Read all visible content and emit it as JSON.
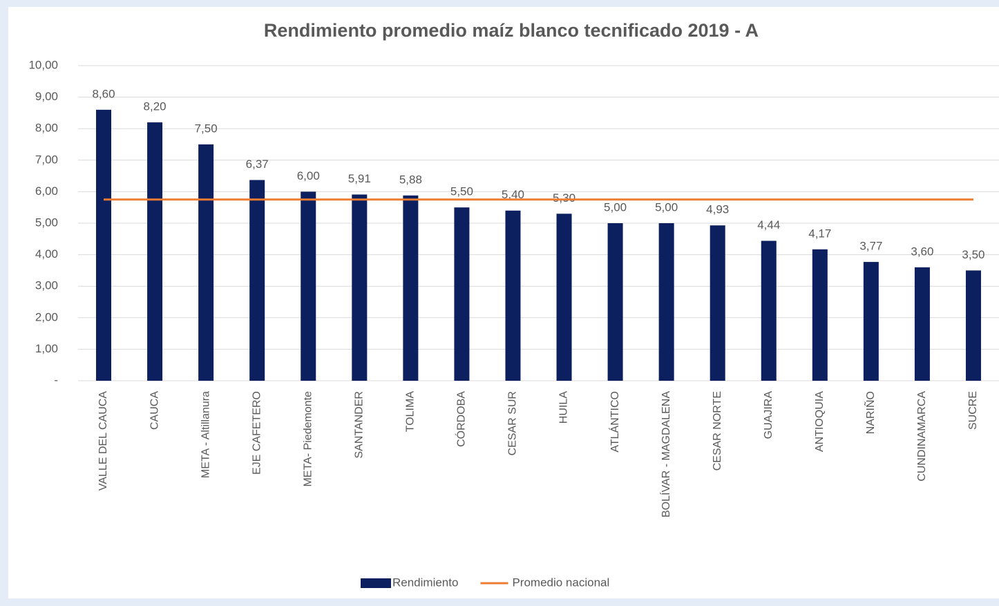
{
  "chart_data": {
    "type": "bar",
    "title": "Rendimiento promedio maíz blanco tecnificado 2019 - A",
    "categories": [
      "VALLE DEL CAUCA",
      "CAUCA",
      "META - Altillanura",
      "EJE CAFETERO",
      "META- Piedemonte",
      "SANTANDER",
      "TOLIMA",
      "CÓRDOBA",
      "CESAR SUR",
      "HUILA",
      "ATLÁNTICO",
      "BOLÍVAR - MAGDALENA",
      "CESAR NORTE",
      "GUAJIRA",
      "ANTIOQUIA",
      "NARIÑO",
      "CUNDINAMARCA",
      "SUCRE"
    ],
    "series": [
      {
        "name": "Rendimiento",
        "color": "#0c1f5e",
        "values": [
          8.6,
          8.2,
          7.5,
          6.37,
          6.0,
          5.91,
          5.88,
          5.5,
          5.4,
          5.3,
          5.0,
          5.0,
          4.93,
          4.44,
          4.17,
          3.77,
          3.6,
          3.5
        ],
        "value_labels": [
          "8,60",
          "8,20",
          "7,50",
          "6,37",
          "6,00",
          "5,91",
          "5,88",
          "5,50",
          "5,40",
          "5,30",
          "5,00",
          "5,00",
          "4,93",
          "4,44",
          "4,17",
          "3,77",
          "3,60",
          "3,50"
        ]
      },
      {
        "name": "Promedio nacional",
        "color": "#ed7d31",
        "type": "line",
        "values": [
          5.75,
          5.75,
          5.75,
          5.75,
          5.75,
          5.75,
          5.75,
          5.75,
          5.75,
          5.75,
          5.75,
          5.75,
          5.75,
          5.75,
          5.75,
          5.75,
          5.75,
          5.75
        ]
      }
    ],
    "ylim": [
      0,
      10
    ],
    "yticks": [
      {
        "value": 0,
        "label": "-"
      },
      {
        "value": 1,
        "label": "1,00"
      },
      {
        "value": 2,
        "label": "2,00"
      },
      {
        "value": 3,
        "label": "3,00"
      },
      {
        "value": 4,
        "label": "4,00"
      },
      {
        "value": 5,
        "label": "5,00"
      },
      {
        "value": 6,
        "label": "6,00"
      },
      {
        "value": 7,
        "label": "7,00"
      },
      {
        "value": 8,
        "label": "8,00"
      },
      {
        "value": 9,
        "label": "9,00"
      },
      {
        "value": 10,
        "label": "10,00"
      }
    ],
    "grid": true,
    "legend": "bottom"
  }
}
